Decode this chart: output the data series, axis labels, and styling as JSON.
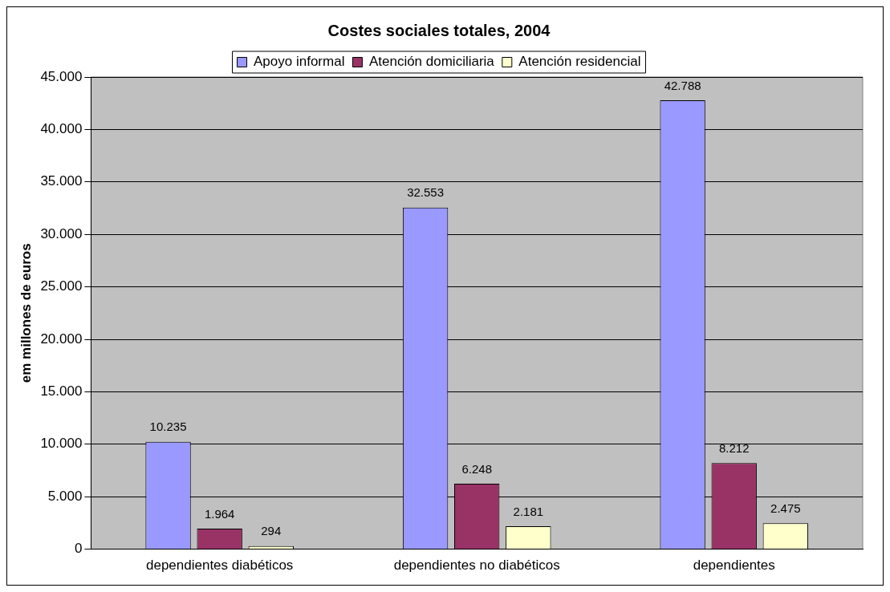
{
  "chart_data": {
    "type": "bar",
    "title": "Costes sociales totales, 2004",
    "ylabel": "em millones de euros",
    "categories": [
      "dependientes diabéticos",
      "dependientes no diabéticos",
      "dependientes"
    ],
    "series": [
      {
        "name": "Apoyo informal",
        "color": "#9999ff",
        "values": [
          10235,
          32553,
          42788
        ],
        "value_labels": [
          "10.235",
          "32.553",
          "42.788"
        ]
      },
      {
        "name": "Atención domiciliaria",
        "color": "#993366",
        "values": [
          1964,
          6248,
          8212
        ],
        "value_labels": [
          "1.964",
          "6.248",
          "8.212"
        ]
      },
      {
        "name": "Atención residencial",
        "color": "#ffffcc",
        "values": [
          294,
          2181,
          2475
        ],
        "value_labels": [
          "294",
          "2.181",
          "2.475"
        ]
      }
    ],
    "ylim": [
      0,
      45000
    ],
    "yticks": [
      {
        "value": 0,
        "label": "0"
      },
      {
        "value": 5000,
        "label": "5.000"
      },
      {
        "value": 10000,
        "label": "10.000"
      },
      {
        "value": 15000,
        "label": "15.000"
      },
      {
        "value": 20000,
        "label": "20.000"
      },
      {
        "value": 25000,
        "label": "25.000"
      },
      {
        "value": 30000,
        "label": "30.000"
      },
      {
        "value": 35000,
        "label": "35.000"
      },
      {
        "value": 40000,
        "label": "40.000"
      },
      {
        "value": 45000,
        "label": "45.000"
      }
    ],
    "grid": "y",
    "legend": "top"
  }
}
